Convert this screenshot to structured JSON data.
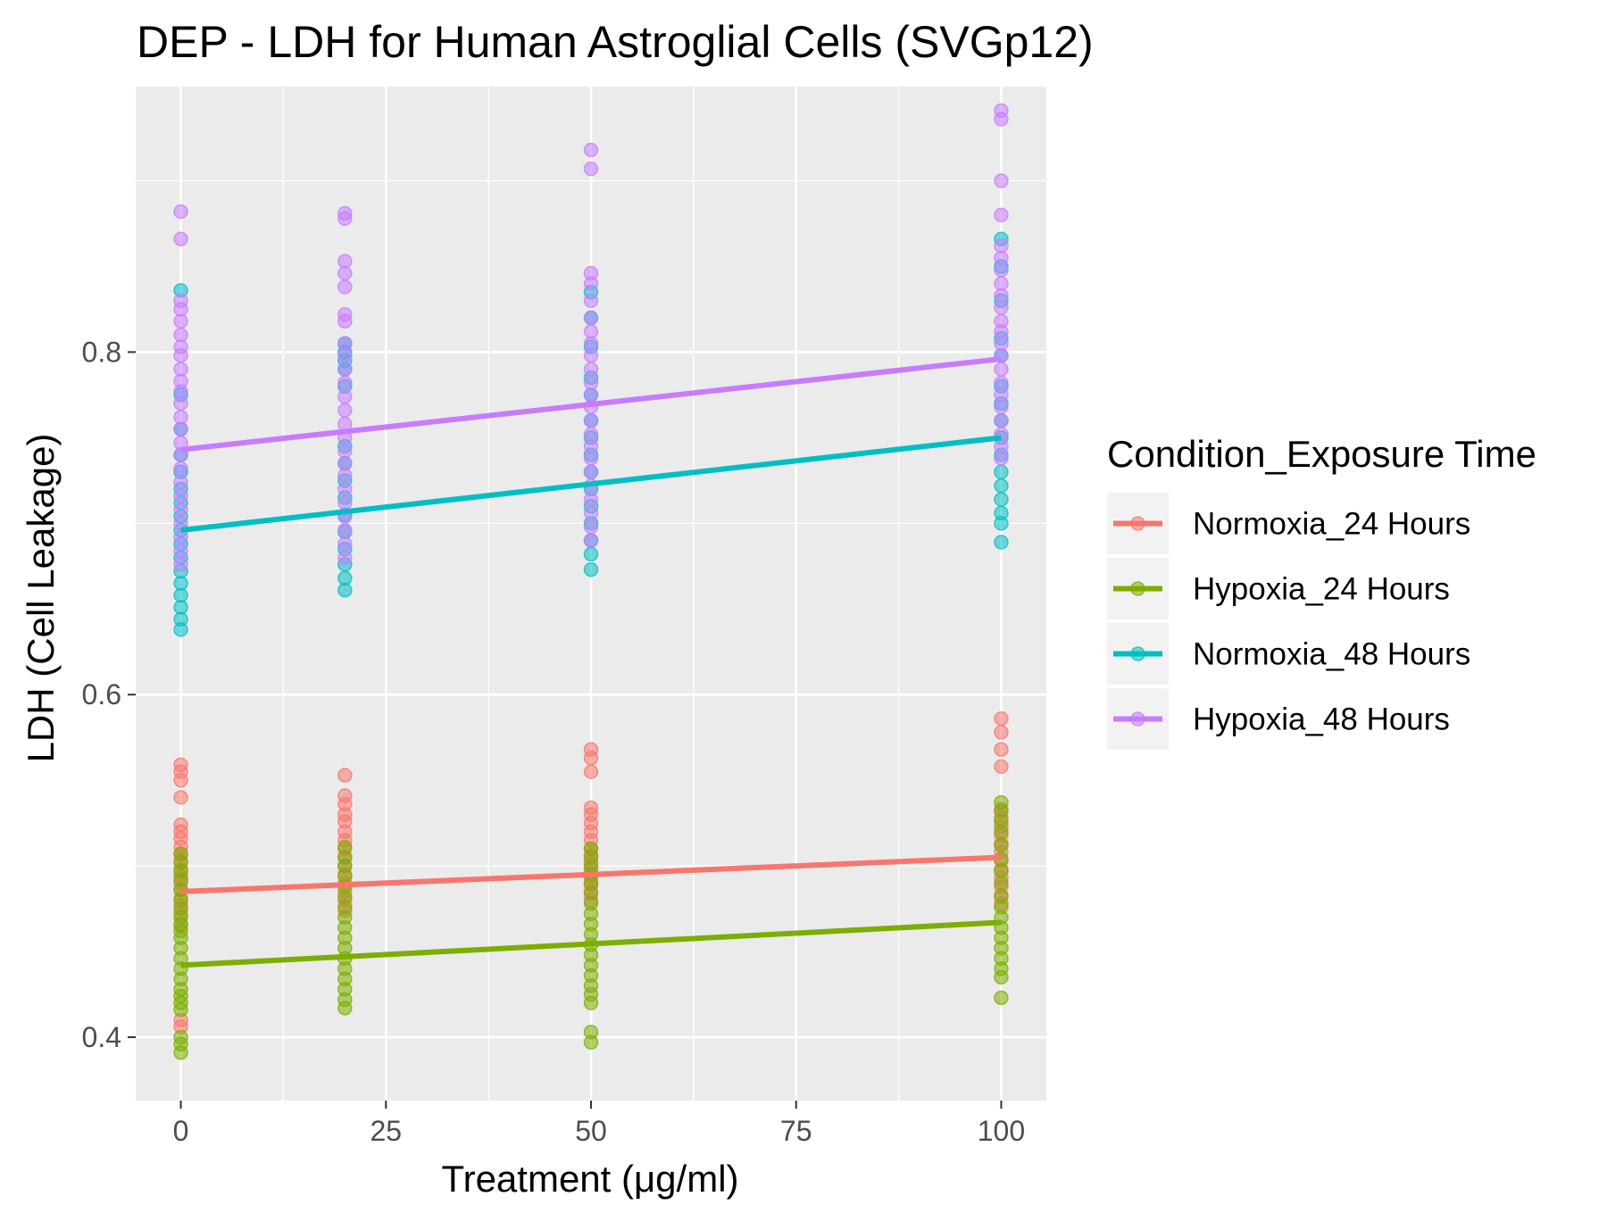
{
  "chart_data": {
    "type": "scatter",
    "title": "DEP - LDH for Human Astroglial Cells (SVGp12)",
    "xlabel": "Treatment (μg/ml)",
    "ylabel": "LDH (Cell Leakage)",
    "xlim": [
      -5.5,
      105.5
    ],
    "ylim": [
      0.363,
      0.955
    ],
    "x_ticks": [
      0,
      25,
      50,
      75,
      100
    ],
    "x_tick_labels": [
      "0",
      "25",
      "50",
      "75",
      "100"
    ],
    "y_ticks": [
      0.4,
      0.6,
      0.8
    ],
    "y_tick_labels": [
      "0.4",
      "0.6",
      "0.8"
    ],
    "grid": true,
    "legend": {
      "title": "Condition_Exposure Time",
      "position": "right"
    },
    "series": [
      {
        "name": "Normoxia_24 Hours",
        "color": "#F8766D",
        "trend": {
          "x": [
            0,
            100
          ],
          "y": [
            0.485,
            0.505
          ]
        },
        "points": {
          "0": [
            0.559,
            0.555,
            0.55,
            0.54,
            0.524,
            0.52,
            0.516,
            0.511,
            0.507,
            0.503,
            0.498,
            0.494,
            0.49,
            0.486,
            0.481,
            0.477,
            0.472,
            0.465,
            0.41,
            0.406
          ],
          "20": [
            0.553,
            0.541,
            0.536,
            0.53,
            0.526,
            0.52,
            0.515,
            0.51,
            0.505,
            0.5,
            0.495,
            0.49,
            0.485,
            0.48,
            0.474
          ],
          "50": [
            0.568,
            0.563,
            0.555,
            0.534,
            0.53,
            0.525,
            0.52,
            0.515,
            0.51,
            0.506,
            0.502,
            0.498,
            0.493,
            0.489,
            0.485,
            0.48
          ],
          "100": [
            0.586,
            0.578,
            0.568,
            0.558,
            0.533,
            0.528,
            0.523,
            0.518,
            0.513,
            0.508,
            0.503,
            0.498,
            0.493,
            0.488,
            0.483,
            0.478
          ]
        }
      },
      {
        "name": "Hypoxia_24 Hours",
        "color": "#7CAE00",
        "trend": {
          "x": [
            0,
            100
          ],
          "y": [
            0.442,
            0.467
          ]
        },
        "points": {
          "0": [
            0.507,
            0.502,
            0.497,
            0.492,
            0.486,
            0.48,
            0.475,
            0.47,
            0.466,
            0.462,
            0.458,
            0.452,
            0.446,
            0.44,
            0.434,
            0.428,
            0.424,
            0.42,
            0.416,
            0.4,
            0.396,
            0.391
          ],
          "20": [
            0.511,
            0.505,
            0.5,
            0.494,
            0.488,
            0.482,
            0.476,
            0.47,
            0.464,
            0.458,
            0.452,
            0.446,
            0.44,
            0.434,
            0.428,
            0.422,
            0.417
          ],
          "50": [
            0.51,
            0.505,
            0.5,
            0.495,
            0.49,
            0.484,
            0.478,
            0.472,
            0.466,
            0.46,
            0.454,
            0.448,
            0.442,
            0.436,
            0.43,
            0.425,
            0.42,
            0.403,
            0.397
          ],
          "100": [
            0.537,
            0.532,
            0.526,
            0.52,
            0.512,
            0.504,
            0.497,
            0.49,
            0.482,
            0.476,
            0.47,
            0.464,
            0.458,
            0.452,
            0.446,
            0.44,
            0.435,
            0.423
          ]
        }
      },
      {
        "name": "Normoxia_48 Hours",
        "color": "#00BFC4",
        "trend": {
          "x": [
            0,
            100
          ],
          "y": [
            0.696,
            0.75
          ]
        },
        "points": {
          "0": [
            0.836,
            0.775,
            0.755,
            0.74,
            0.73,
            0.72,
            0.712,
            0.704,
            0.696,
            0.688,
            0.68,
            0.672,
            0.665,
            0.658,
            0.651,
            0.644,
            0.638
          ],
          "20": [
            0.805,
            0.8,
            0.795,
            0.79,
            0.78,
            0.745,
            0.735,
            0.725,
            0.715,
            0.705,
            0.695,
            0.685,
            0.676,
            0.668,
            0.661
          ],
          "50": [
            0.835,
            0.82,
            0.803,
            0.785,
            0.775,
            0.76,
            0.75,
            0.74,
            0.73,
            0.72,
            0.71,
            0.7,
            0.69,
            0.682,
            0.673
          ],
          "100": [
            0.866,
            0.85,
            0.83,
            0.808,
            0.798,
            0.78,
            0.77,
            0.76,
            0.75,
            0.74,
            0.73,
            0.722,
            0.714,
            0.706,
            0.7,
            0.689
          ]
        }
      },
      {
        "name": "Hypoxia_48 Hours",
        "color": "#C77CFF",
        "trend": {
          "x": [
            0,
            100
          ],
          "y": [
            0.743,
            0.796
          ]
        },
        "points": {
          "0": [
            0.882,
            0.866,
            0.83,
            0.825,
            0.818,
            0.81,
            0.803,
            0.798,
            0.79,
            0.783,
            0.777,
            0.77,
            0.762,
            0.755,
            0.747,
            0.74,
            0.732,
            0.724,
            0.716,
            0.708,
            0.7,
            0.692,
            0.684,
            0.676
          ],
          "20": [
            0.881,
            0.878,
            0.853,
            0.846,
            0.838,
            0.822,
            0.818,
            0.805,
            0.798,
            0.79,
            0.782,
            0.774,
            0.766,
            0.758,
            0.75,
            0.742,
            0.735,
            0.728,
            0.72,
            0.712,
            0.704,
            0.696,
            0.688,
            0.68
          ],
          "50": [
            0.918,
            0.907,
            0.846,
            0.84,
            0.83,
            0.82,
            0.812,
            0.805,
            0.798,
            0.79,
            0.782,
            0.775,
            0.768,
            0.76,
            0.752,
            0.745,
            0.738,
            0.73,
            0.722,
            0.714,
            0.706,
            0.698,
            0.69
          ],
          "100": [
            0.941,
            0.936,
            0.9,
            0.88,
            0.862,
            0.855,
            0.848,
            0.84,
            0.833,
            0.826,
            0.818,
            0.812,
            0.805,
            0.798,
            0.79,
            0.782,
            0.775,
            0.768,
            0.76,
            0.752,
            0.745,
            0.738
          ]
        }
      }
    ]
  }
}
